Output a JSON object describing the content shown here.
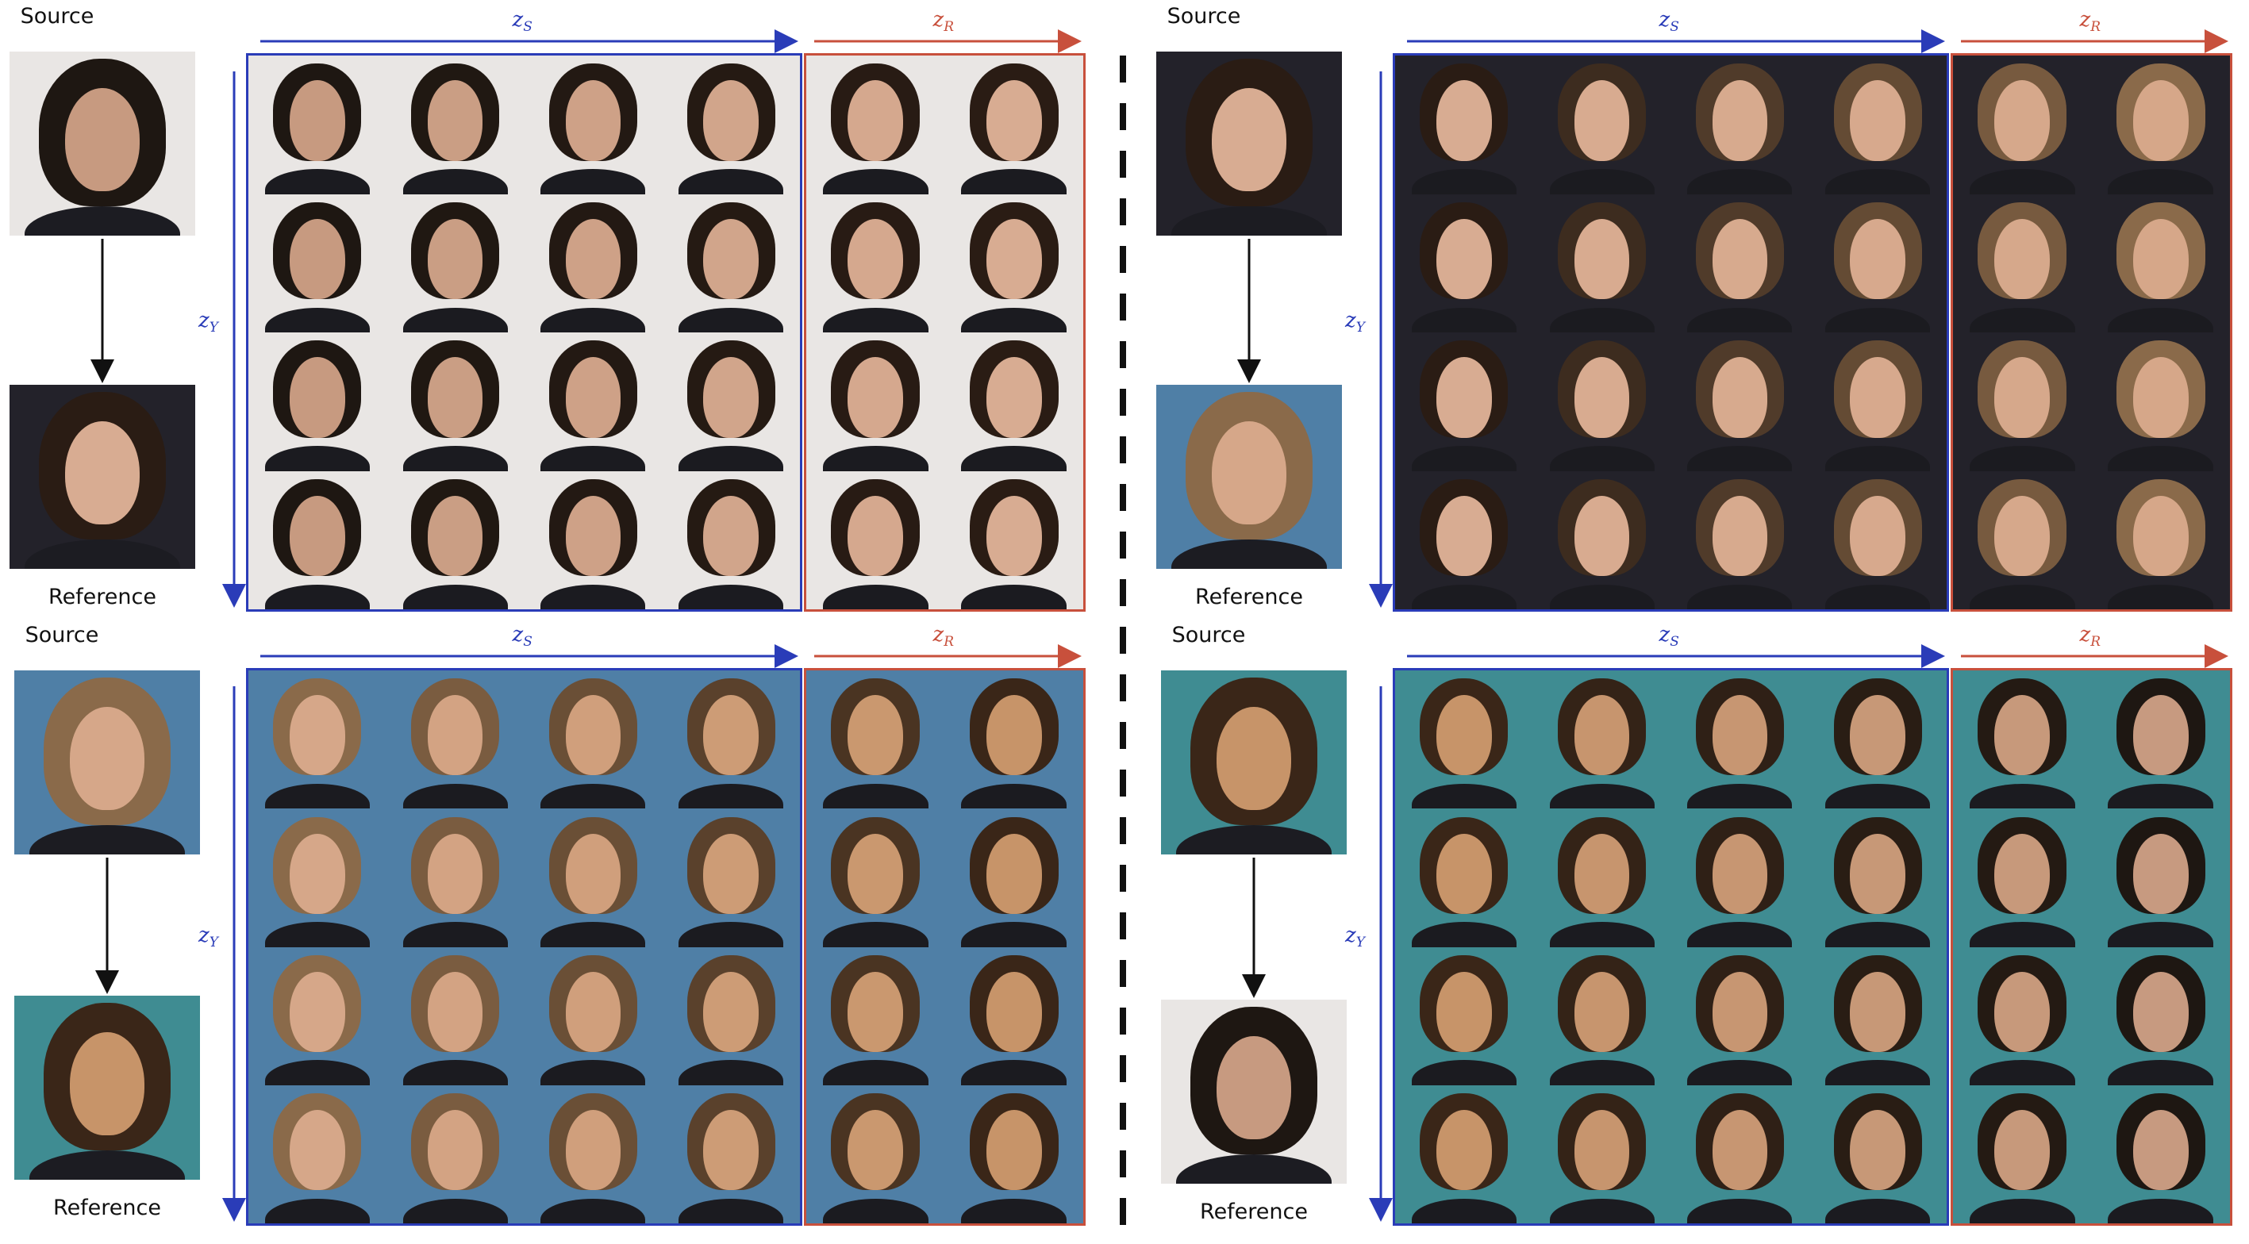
{
  "panels": [
    {
      "source_label": "Source",
      "reference_label": "Reference",
      "zs": "z",
      "zs_sub": "S",
      "zr": "z",
      "zr_sub": "R",
      "zy": "z",
      "zy_sub": "Y"
    },
    {
      "source_label": "Source",
      "reference_label": "Reference",
      "zs": "z",
      "zs_sub": "S",
      "zr": "z",
      "zr_sub": "R",
      "zy": "z",
      "zy_sub": "Y"
    },
    {
      "source_label": "Source",
      "reference_label": "Reference",
      "zs": "z",
      "zs_sub": "S",
      "zr": "z",
      "zr_sub": "R",
      "zy": "z",
      "zy_sub": "Y"
    },
    {
      "source_label": "Source",
      "reference_label": "Reference",
      "zs": "z",
      "zs_sub": "S",
      "zr": "z",
      "zr_sub": "R",
      "zy": "z",
      "zy_sub": "Y"
    }
  ],
  "colors": {
    "zs_blue": "#2a3cb8",
    "zr_red": "#c8503c",
    "divider": "#111111",
    "panel_bg": [
      "#e9e6e4",
      "#23222a",
      "#4f7fa6",
      "#3f8c92"
    ],
    "hair": [
      "#1e1712",
      "#2a1c14",
      "#8a6a4a",
      "#3a2618"
    ],
    "skin": [
      "#c79a80",
      "#d8ac92",
      "#d6a789",
      "#c79469"
    ]
  }
}
